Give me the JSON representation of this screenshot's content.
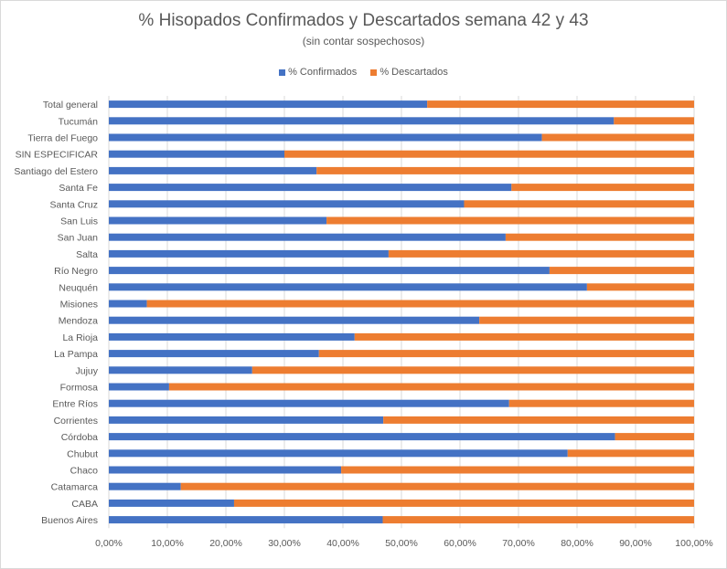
{
  "chart_data": {
    "type": "bar",
    "orientation": "horizontal",
    "stacked": true,
    "title": "% Hisopados Confirmados y Descartados semana 42 y 43",
    "subtitle": "(sin contar sospechosos)",
    "categories": [
      "Total general",
      "Tucumán",
      "Tierra del Fuego",
      "SIN ESPECIFICAR",
      "Santiago del Estero",
      "Santa Fe",
      "Santa Cruz",
      "San Luis",
      "San Juan",
      "Salta",
      "Río Negro",
      "Neuquén",
      "Misiones",
      "Mendoza",
      "La Rioja",
      "La Pampa",
      "Jujuy",
      "Formosa",
      "Entre Ríos",
      "Corrientes",
      "Córdoba",
      "Chubut",
      "Chaco",
      "Catamarca",
      "CABA",
      "Buenos Aires"
    ],
    "series": [
      {
        "name": "% Confirmados",
        "color": "#4472c4",
        "values": [
          54.4,
          86.3,
          74.0,
          30.0,
          35.5,
          68.8,
          60.7,
          37.2,
          67.8,
          47.8,
          75.3,
          81.7,
          6.5,
          63.3,
          42.0,
          35.9,
          24.5,
          10.3,
          68.4,
          46.9,
          86.5,
          78.4,
          39.7,
          12.3,
          21.4,
          46.8
        ]
      },
      {
        "name": "% Descartados",
        "color": "#ed7d31",
        "values": [
          45.6,
          13.7,
          26.0,
          70.0,
          64.5,
          31.2,
          39.3,
          62.8,
          32.2,
          52.2,
          24.7,
          18.3,
          93.5,
          36.7,
          58.0,
          64.1,
          75.5,
          89.7,
          31.6,
          53.1,
          13.5,
          21.6,
          60.3,
          87.7,
          78.6,
          53.2
        ]
      }
    ],
    "x_ticks": [
      "0,00%",
      "10,00%",
      "20,00%",
      "30,00%",
      "40,00%",
      "50,00%",
      "60,00%",
      "70,00%",
      "80,00%",
      "90,00%",
      "100,00%"
    ],
    "xlim": [
      0,
      100
    ],
    "grid": true,
    "legend_position": "top"
  }
}
